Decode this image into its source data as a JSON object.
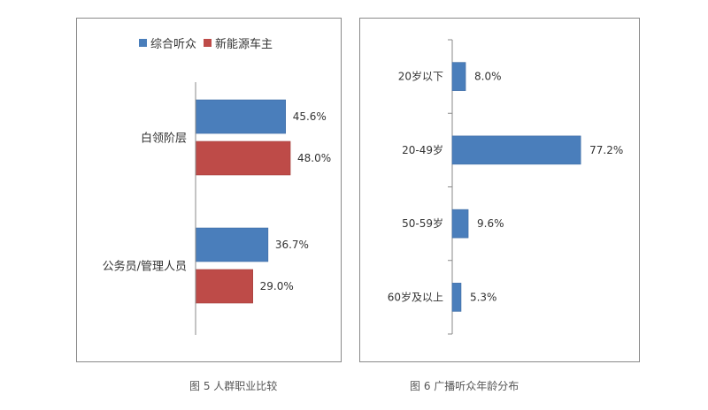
{
  "colors": {
    "series_blue": "#4a7ebb",
    "series_red": "#be4b48",
    "axis": "#888888",
    "frame": "#8a8a8a",
    "label": "#333333"
  },
  "captions": {
    "left": "图 5  人群职业比较",
    "right": "图 6  广播听众年龄分布"
  },
  "chart_data": [
    {
      "type": "bar",
      "orientation": "horizontal",
      "title": "",
      "categories": [
        "白领阶层",
        "公务员/管理人员"
      ],
      "series": [
        {
          "name": "综合听众",
          "color": "#4a7ebb",
          "values": [
            45.6,
            36.7
          ],
          "labels": [
            "45.6%",
            "36.7%"
          ]
        },
        {
          "name": "新能源车主",
          "color": "#be4b48",
          "values": [
            48.0,
            29.0
          ],
          "labels": [
            "48.0%",
            "29.0%"
          ]
        }
      ],
      "legend": "top",
      "grid": false,
      "xlim": [
        0,
        55
      ]
    },
    {
      "type": "bar",
      "orientation": "horizontal",
      "title": "",
      "categories": [
        "20岁以下",
        "20-49岁",
        "50-59岁",
        "60岁及以上"
      ],
      "values": [
        8.0,
        77.2,
        9.6,
        5.3
      ],
      "labels": [
        "8.0%",
        "77.2%",
        "9.6%",
        "5.3%"
      ],
      "color": "#4a7ebb",
      "legend": "none",
      "grid": false,
      "xlim": [
        0,
        100
      ]
    }
  ]
}
